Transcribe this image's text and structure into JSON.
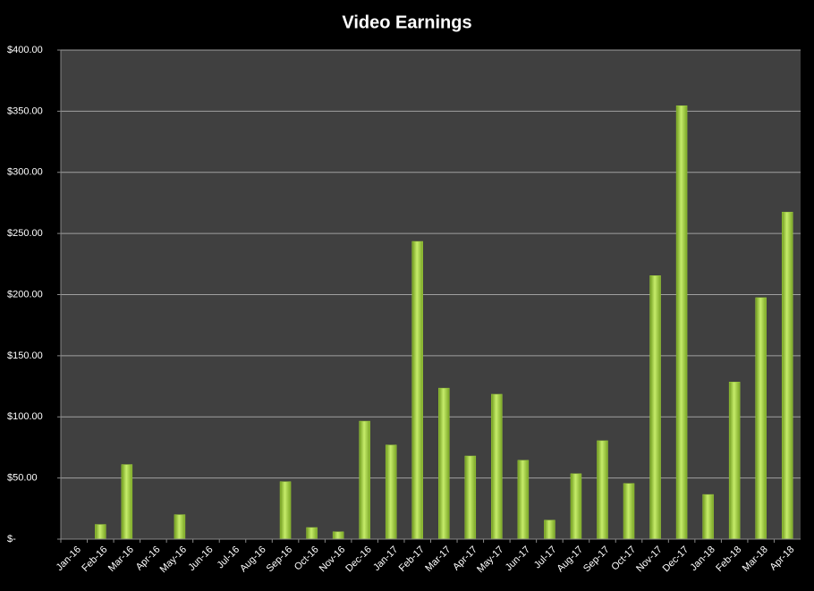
{
  "chart_data": {
    "type": "bar",
    "title": "Video Earnings",
    "categories": [
      "Jan-16",
      "Feb-16",
      "Mar-16",
      "Apr-16",
      "May-16",
      "Jun-16",
      "Jul-16",
      "Aug-16",
      "Sep-16",
      "Oct-16",
      "Nov-16",
      "Dec-16",
      "Jan-17",
      "Feb-17",
      "Mar-17",
      "Apr-17",
      "May-17",
      "Jun-17",
      "Jul-17",
      "Aug-17",
      "Sep-17",
      "Oct-17",
      "Nov-17",
      "Dec-17",
      "Jan-18",
      "Feb-18",
      "Mar-18",
      "Apr-18"
    ],
    "values": [
      0,
      12,
      61,
      0,
      20,
      0,
      0,
      0,
      47,
      9.5,
      6,
      96.5,
      77,
      243.5,
      123.5,
      68,
      118.5,
      64.5,
      15.5,
      53.5,
      80.5,
      45.5,
      215.5,
      354.5,
      36.5,
      128.5,
      197.5,
      267.5
    ],
    "color": "#9ccc3c",
    "ylim": [
      0,
      400
    ],
    "yticks": [
      {
        "value": 0,
        "label": "$-"
      },
      {
        "value": 50,
        "label": "$50.00"
      },
      {
        "value": 100,
        "label": "$100.00"
      },
      {
        "value": 150,
        "label": "$150.00"
      },
      {
        "value": 200,
        "label": "$200.00"
      },
      {
        "value": 250,
        "label": "$250.00"
      },
      {
        "value": 300,
        "label": "$300.00"
      },
      {
        "value": 350,
        "label": "$350.00"
      },
      {
        "value": 400,
        "label": "$400.00"
      }
    ],
    "grid": true
  }
}
